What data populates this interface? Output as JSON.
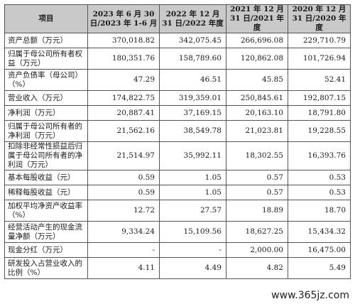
{
  "header": {
    "item": "项目",
    "col1": "2023 年 6 月 30 日/2023 年 1-6 月",
    "col2": "2022 年 12 月 31 日/2022 年度",
    "col3": "2021 年 12 月 31 日/2021 年度",
    "col4": "2020 年 12 月 31 日/2020 年度"
  },
  "rows": [
    {
      "label": "资产总额（万元）",
      "v": [
        "370,018.82",
        "342,075.45",
        "266,696.08",
        "229,710.79"
      ]
    },
    {
      "label": "归属于母公司所有者权益（万元）",
      "v": [
        "180,351.76",
        "158,789.60",
        "120,862.08",
        "101,726.94"
      ]
    },
    {
      "label": "资产负债率（母公司）（%）",
      "v": [
        "47.29",
        "46.51",
        "45.85",
        "52.41"
      ]
    },
    {
      "label": "营业收入（万元）",
      "v": [
        "174,822.75",
        "319,359.01",
        "250,845.61",
        "192,807.15"
      ]
    },
    {
      "label": "净利润（万元）",
      "v": [
        "20,887.41",
        "37,169.15",
        "20,163.10",
        "18,791.80"
      ]
    },
    {
      "label": "归属于母公司所有者的净利润（万元）",
      "v": [
        "21,562.16",
        "38,549.78",
        "21,023.81",
        "19,228.55"
      ]
    },
    {
      "label": "扣除非经常性损益后归属于母公司所有者的净利润（万元）",
      "v": [
        "21,514.97",
        "35,992.11",
        "18,302.55",
        "16,393.76"
      ]
    },
    {
      "label": "基本每股收益（元）",
      "v": [
        "0.59",
        "1.05",
        "0.57",
        "0.53"
      ]
    },
    {
      "label": "稀释每股收益（元）",
      "v": [
        "0.59",
        "1.05",
        "0.57",
        "0.53"
      ]
    },
    {
      "label": "加权平均净资产收益率（%）",
      "v": [
        "12.72",
        "27.57",
        "18.89",
        "18.70"
      ]
    },
    {
      "label": "经营活动产生的现金流量净额（万元）",
      "v": [
        "9,334.24",
        "15,109.56",
        "18,627.25",
        "15,434.32"
      ]
    },
    {
      "label": "现金分红（万元）",
      "v": [
        "-",
        "-",
        "2,000.00",
        "16,475.00"
      ]
    },
    {
      "label": "研发投入占营业收入的比例（%）",
      "v": [
        "4.11",
        "4.49",
        "4.82",
        "5.49"
      ]
    }
  ],
  "watermark": "www.365jz.com"
}
